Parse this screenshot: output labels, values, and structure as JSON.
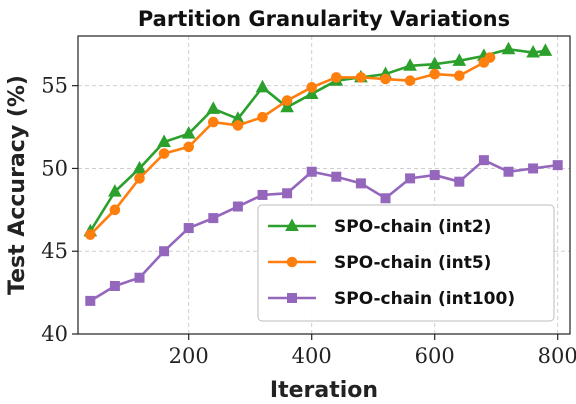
{
  "chart_data": {
    "type": "line",
    "title": "Partition Granularity Variations",
    "xlabel": "Iteration",
    "ylabel": "Test Accuracy (%)",
    "xlim": [
      20,
      820
    ],
    "ylim": [
      40,
      58
    ],
    "xticks": [
      200,
      400,
      600,
      800
    ],
    "yticks": [
      40,
      45,
      50,
      55
    ],
    "xtick_labels": [
      "200",
      "400",
      "600",
      "800"
    ],
    "ytick_labels": [
      "40",
      "45",
      "50",
      "55"
    ],
    "grid": true,
    "legend_position": "lower-right",
    "series": [
      {
        "name": "SPO-chain (int2)",
        "color": "#2ca02c",
        "marker": "triangle",
        "x": [
          40,
          80,
          120,
          160,
          200,
          240,
          280,
          320,
          360,
          400,
          440,
          480,
          520,
          560,
          600,
          640,
          680,
          720,
          760,
          780
        ],
        "y": [
          46.2,
          48.6,
          50.0,
          51.6,
          52.1,
          53.6,
          53.0,
          54.9,
          53.7,
          54.5,
          55.3,
          55.5,
          55.7,
          56.2,
          56.3,
          56.5,
          56.8,
          57.2,
          57.0,
          57.1
        ]
      },
      {
        "name": "SPO-chain (int5)",
        "color": "#ff7f0e",
        "marker": "circle",
        "x": [
          40,
          80,
          120,
          160,
          200,
          240,
          280,
          320,
          360,
          400,
          440,
          480,
          520,
          560,
          600,
          640,
          680,
          690
        ],
        "y": [
          46.0,
          47.5,
          49.4,
          50.9,
          51.3,
          52.8,
          52.6,
          53.1,
          54.1,
          54.9,
          55.5,
          55.5,
          55.4,
          55.3,
          55.7,
          55.6,
          56.4,
          56.7
        ]
      },
      {
        "name": "SPO-chain (int100)",
        "color": "#9467bd",
        "marker": "square",
        "x": [
          40,
          80,
          120,
          160,
          200,
          240,
          280,
          320,
          360,
          400,
          440,
          480,
          520,
          560,
          600,
          640,
          680,
          720,
          760,
          800
        ],
        "y": [
          42.0,
          42.9,
          43.4,
          45.0,
          46.4,
          47.0,
          47.7,
          48.4,
          48.5,
          49.8,
          49.5,
          49.1,
          48.2,
          49.4,
          49.6,
          49.2,
          50.5,
          49.8,
          50.0,
          50.2
        ]
      }
    ]
  }
}
